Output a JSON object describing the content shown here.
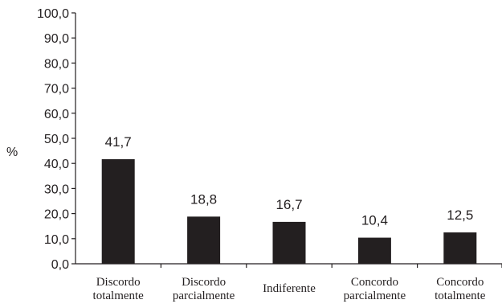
{
  "chart_data": {
    "type": "bar",
    "categories": [
      [
        "Discordo",
        "totalmente"
      ],
      [
        "Discordo",
        "parcialmente"
      ],
      [
        "Indiferente"
      ],
      [
        "Concordo",
        "parcialmente"
      ],
      [
        "Concordo",
        "totalmente"
      ]
    ],
    "values": [
      41.7,
      18.8,
      16.7,
      10.4,
      12.5
    ],
    "value_labels": [
      "41,7",
      "18,8",
      "16,7",
      "10,4",
      "12,5"
    ],
    "ylabel": "%",
    "ylim": [
      0,
      100
    ],
    "y_ticks": [
      0,
      10,
      20,
      30,
      40,
      50,
      60,
      70,
      80,
      90,
      100
    ],
    "y_tick_labels": [
      "0,0",
      "10,0",
      "20,0",
      "30,0",
      "40,0",
      "50,0",
      "60,0",
      "70,0",
      "80,0",
      "90,0",
      "100,0"
    ],
    "bar_color": "#231f20",
    "grid": false,
    "legend": "none"
  }
}
